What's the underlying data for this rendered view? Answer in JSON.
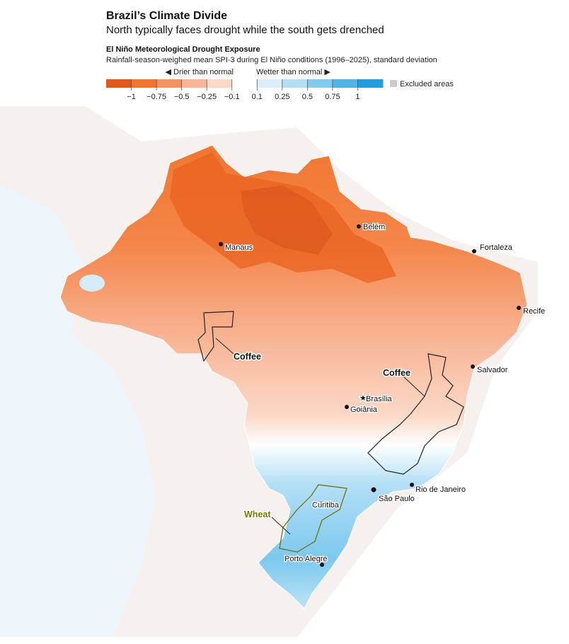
{
  "header": {
    "title": "Brazil’s Climate Divide",
    "subtitle": "North typically faces drought while the south gets drenched"
  },
  "legend": {
    "title": "El Niño Meteorological Drought Exposure",
    "description": "Rainfall-season-weighed mean SPI-3 during El Niño conditions (1996–2025), standard deviation",
    "drier_label": "◀ Drier than normal",
    "wetter_label": "Wetter than normal ▶",
    "ticks": [
      {
        "value": -1,
        "label": "−1"
      },
      {
        "value": -0.75,
        "label": "−0.75"
      },
      {
        "value": -0.5,
        "label": "−0.5"
      },
      {
        "value": -0.25,
        "label": "−0.25"
      },
      {
        "value": -0.1,
        "label": "−0.1"
      },
      0.1,
      0.25,
      0.5,
      0.75,
      1
    ],
    "colors": [
      "#e4581c",
      "#f0762f",
      "#f6945f",
      "#f9b596",
      "#fcd8c6",
      "#ffffff",
      "#d9edfa",
      "#b3dff6",
      "#80c9ef",
      "#4fb3e8",
      "#1f9ddc"
    ],
    "excluded_label": "Excluded areas"
  },
  "map": {
    "cities": [
      "Belém",
      "Manaus",
      "Fortaleza",
      "Recife",
      "Salvador",
      "Brasília",
      "Goiânia",
      "Rio de Janeiro",
      "São Paulo",
      "Curitiba",
      "Porto Alegre"
    ],
    "regions": [
      "Coffee",
      "Coffee",
      "Wheat"
    ]
  }
}
